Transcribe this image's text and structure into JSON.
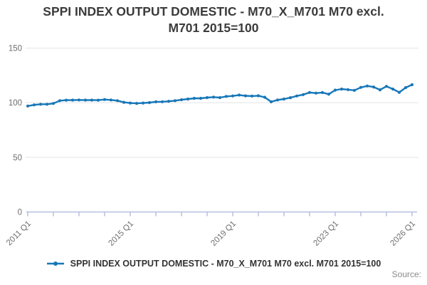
{
  "header": {
    "title_line1": "SPPI INDEX OUTPUT DOMESTIC - M70_X_M701 M70 excl.",
    "title_line2": "M701 2015=100"
  },
  "legend": {
    "label": "SPPI INDEX OUTPUT DOMESTIC - M70_X_M701 M70 excl. M701 2015=100"
  },
  "footer": {
    "source_label": "Source:"
  },
  "colors": {
    "line": "#1777b8",
    "grid": "#e4e4e4",
    "axis": "#b6c0e0",
    "tick_text": "#6e6e6e"
  },
  "chart_data": {
    "type": "line",
    "title": "SPPI INDEX OUTPUT DOMESTIC - M70_X_M701 M70 excl. M701 2015=100",
    "x": [
      "2011 Q1",
      "2011 Q2",
      "2011 Q3",
      "2011 Q4",
      "2012 Q1",
      "2012 Q2",
      "2012 Q3",
      "2012 Q4",
      "2013 Q1",
      "2013 Q2",
      "2013 Q3",
      "2013 Q4",
      "2014 Q1",
      "2014 Q2",
      "2014 Q3",
      "2014 Q4",
      "2015 Q1",
      "2015 Q2",
      "2015 Q3",
      "2015 Q4",
      "2016 Q1",
      "2016 Q2",
      "2016 Q3",
      "2016 Q4",
      "2017 Q1",
      "2017 Q2",
      "2017 Q3",
      "2017 Q4",
      "2018 Q1",
      "2018 Q2",
      "2018 Q3",
      "2018 Q4",
      "2019 Q1",
      "2019 Q2",
      "2019 Q3",
      "2019 Q4",
      "2020 Q1",
      "2020 Q2",
      "2020 Q3",
      "2020 Q4",
      "2021 Q1",
      "2021 Q2",
      "2021 Q3",
      "2021 Q4",
      "2022 Q1",
      "2022 Q2",
      "2022 Q3",
      "2022 Q4",
      "2023 Q1",
      "2023 Q2",
      "2023 Q3",
      "2023 Q4",
      "2024 Q1",
      "2024 Q2",
      "2024 Q3",
      "2024 Q4",
      "2025 Q1",
      "2025 Q2",
      "2025 Q3",
      "2025 Q4",
      "2026 Q1"
    ],
    "values": [
      97.0,
      98.0,
      98.6,
      98.6,
      99.3,
      101.9,
      102.3,
      102.4,
      102.5,
      102.4,
      102.4,
      102.3,
      102.9,
      102.5,
      101.9,
      100.4,
      99.7,
      99.4,
      99.7,
      100.1,
      100.8,
      100.9,
      101.3,
      101.9,
      102.7,
      103.4,
      104.0,
      104.0,
      104.7,
      105.1,
      104.7,
      105.8,
      106.2,
      107.0,
      106.3,
      106.1,
      106.4,
      105.0,
      100.8,
      102.5,
      103.4,
      104.6,
      106.2,
      107.4,
      109.4,
      108.8,
      109.3,
      107.8,
      111.5,
      112.5,
      112.0,
      111.3,
      114.0,
      115.3,
      114.4,
      111.8,
      115.0,
      112.5,
      109.5,
      113.8,
      116.5
    ],
    "xlabel": "",
    "ylabel": "",
    "ylim": [
      0,
      150
    ],
    "yticks": [
      0,
      50,
      100,
      150
    ],
    "xtick_labels": [
      "2011 Q1",
      "2015 Q1",
      "2019 Q1",
      "2023 Q1",
      "2026 Q1"
    ],
    "xtick_indices": [
      0,
      16,
      32,
      48,
      60
    ],
    "minor_tick_every": 4,
    "grid": "horizontal",
    "legend_position": "bottom",
    "marker": "circle"
  }
}
